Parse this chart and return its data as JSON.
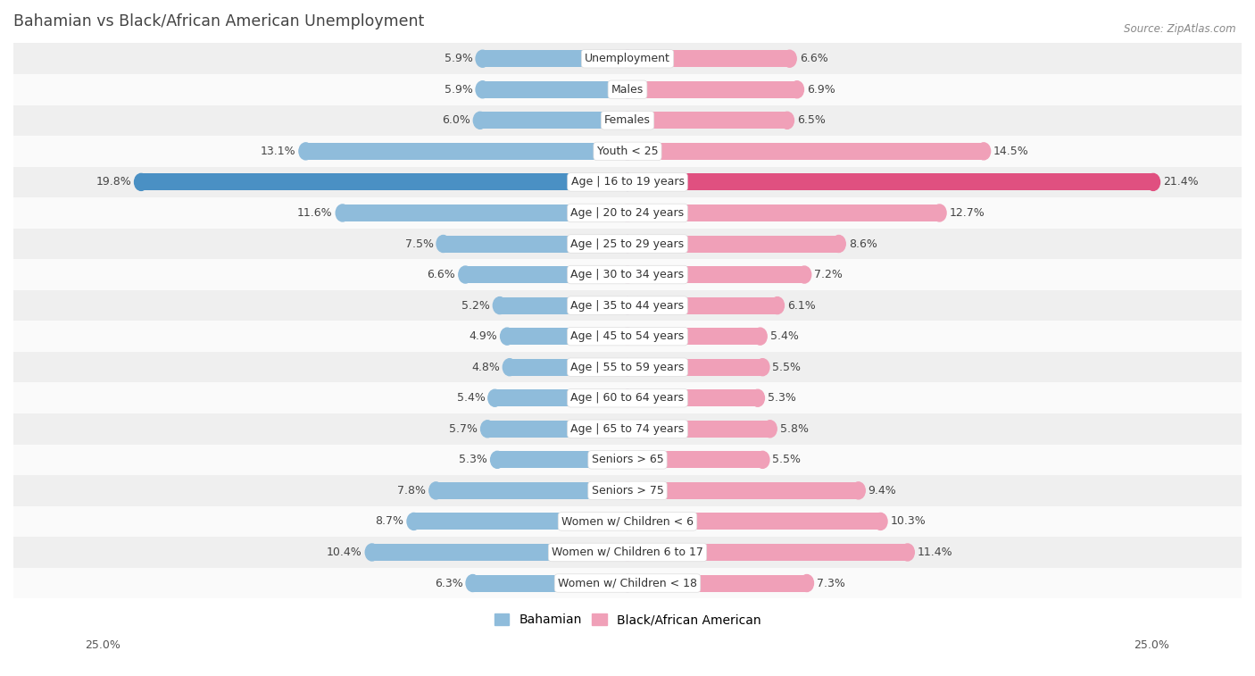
{
  "title": "Bahamian vs Black/African American Unemployment",
  "source": "Source: ZipAtlas.com",
  "categories": [
    "Unemployment",
    "Males",
    "Females",
    "Youth < 25",
    "Age | 16 to 19 years",
    "Age | 20 to 24 years",
    "Age | 25 to 29 years",
    "Age | 30 to 34 years",
    "Age | 35 to 44 years",
    "Age | 45 to 54 years",
    "Age | 55 to 59 years",
    "Age | 60 to 64 years",
    "Age | 65 to 74 years",
    "Seniors > 65",
    "Seniors > 75",
    "Women w/ Children < 6",
    "Women w/ Children 6 to 17",
    "Women w/ Children < 18"
  ],
  "bahamian": [
    5.9,
    5.9,
    6.0,
    13.1,
    19.8,
    11.6,
    7.5,
    6.6,
    5.2,
    4.9,
    4.8,
    5.4,
    5.7,
    5.3,
    7.8,
    8.7,
    10.4,
    6.3
  ],
  "black": [
    6.6,
    6.9,
    6.5,
    14.5,
    21.4,
    12.7,
    8.6,
    7.2,
    6.1,
    5.4,
    5.5,
    5.3,
    5.8,
    5.5,
    9.4,
    10.3,
    11.4,
    7.3
  ],
  "bahamian_color": "#8fbcdb",
  "black_color": "#f0a0b8",
  "highlight_bahamian_color": "#4a90c4",
  "highlight_black_color": "#e05080",
  "row_bg_even": "#efefef",
  "row_bg_odd": "#fafafa",
  "axis_limit": 25.0,
  "bar_height": 0.55,
  "label_fontsize": 9.0,
  "category_fontsize": 9.0,
  "title_fontsize": 12.5,
  "legend_fontsize": 10,
  "title_color": "#444444"
}
